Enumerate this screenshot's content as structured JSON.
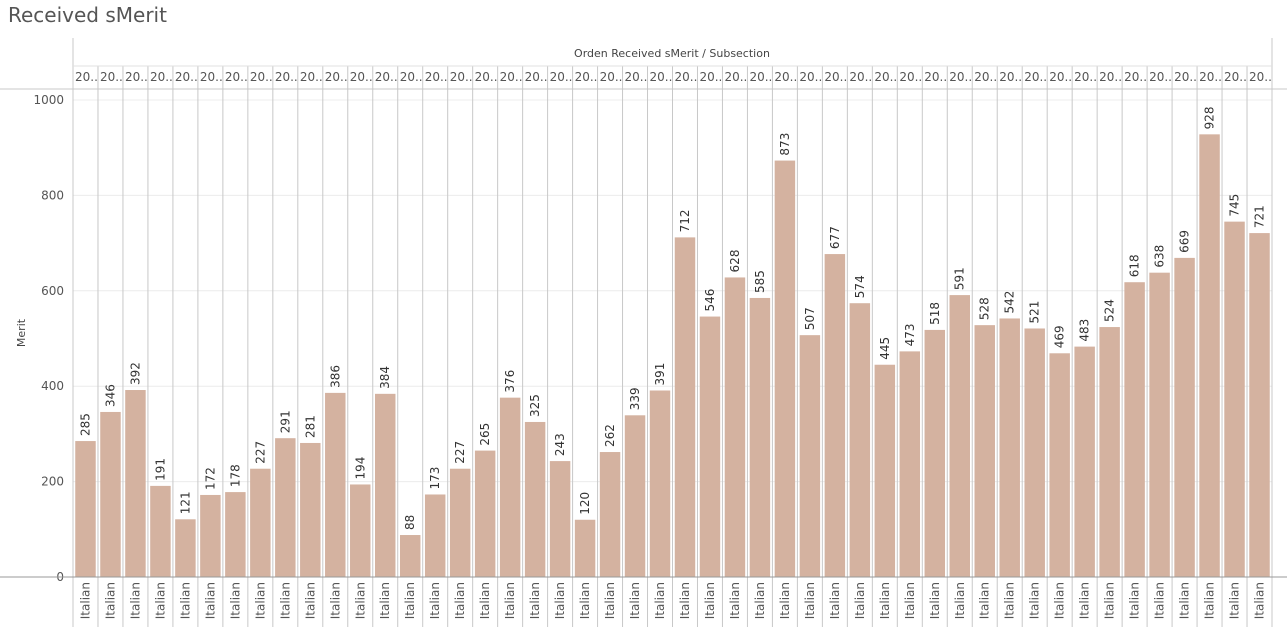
{
  "page": {
    "title": "Received sMerit"
  },
  "colors": {
    "bar": "#d4b2a0",
    "grid": "#ececec",
    "divider": "#c8c8c8",
    "text": "#555555"
  },
  "chart_data": {
    "type": "bar",
    "title": "Received sMerit",
    "column_header": "Orden Received sMerit / Subsection",
    "ylabel": "Merit",
    "ylim": [
      0,
      1000
    ],
    "yticks": [
      0,
      200,
      400,
      600,
      800,
      1000
    ],
    "grid": true,
    "top_labels": [
      "20..",
      "20..",
      "20..",
      "20..",
      "20..",
      "20..",
      "20..",
      "20..",
      "20..",
      "20..",
      "20..",
      "20..",
      "20..",
      "20..",
      "20..",
      "20..",
      "20..",
      "20..",
      "20..",
      "20..",
      "20..",
      "20..",
      "20..",
      "20..",
      "20..",
      "20..",
      "20..",
      "20..",
      "20..",
      "20..",
      "20..",
      "20..",
      "20..",
      "20..",
      "20..",
      "20..",
      "20..",
      "20..",
      "20..",
      "20..",
      "20..",
      "20..",
      "20..",
      "20..",
      "20..",
      "20..",
      "20..",
      "20.."
    ],
    "categories": [
      "Italian",
      "Italian",
      "Italian",
      "Italian",
      "Italian",
      "Italian",
      "Italian",
      "Italian",
      "Italian",
      "Italian",
      "Italian",
      "Italian",
      "Italian",
      "Italian",
      "Italian",
      "Italian",
      "Italian",
      "Italian",
      "Italian",
      "Italian",
      "Italian",
      "Italian",
      "Italian",
      "Italian",
      "Italian",
      "Italian",
      "Italian",
      "Italian",
      "Italian",
      "Italian",
      "Italian",
      "Italian",
      "Italian",
      "Italian",
      "Italian",
      "Italian",
      "Italian",
      "Italian",
      "Italian",
      "Italian",
      "Italian",
      "Italian",
      "Italian",
      "Italian",
      "Italian",
      "Italian",
      "Italian",
      "Italian"
    ],
    "values": [
      285,
      346,
      392,
      191,
      121,
      172,
      178,
      227,
      291,
      281,
      386,
      194,
      384,
      88,
      173,
      227,
      265,
      376,
      325,
      243,
      120,
      262,
      339,
      391,
      712,
      546,
      628,
      585,
      873,
      507,
      677,
      574,
      445,
      473,
      518,
      591,
      528,
      542,
      521,
      469,
      483,
      524,
      618,
      638,
      669,
      928,
      745,
      721
    ]
  }
}
